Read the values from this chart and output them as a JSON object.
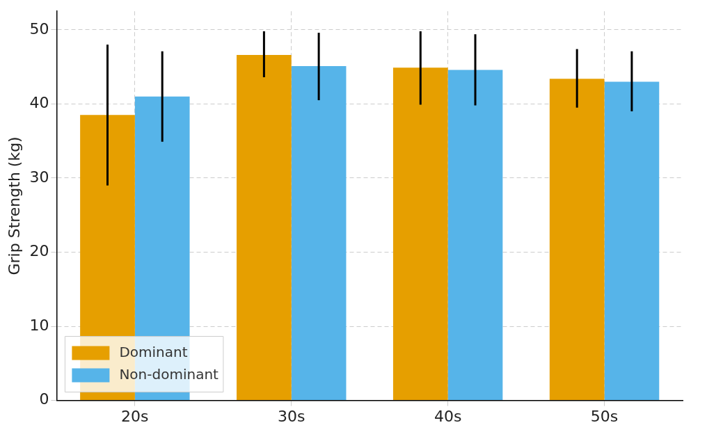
{
  "chart_data": {
    "type": "bar",
    "ylabel": "Grip Strength (kg)",
    "categories": [
      "20s",
      "30s",
      "40s",
      "50s"
    ],
    "series": [
      {
        "name": "Dominant",
        "color": "#e69f00",
        "values": [
          38.5,
          46.6,
          44.9,
          43.4
        ],
        "errors": [
          [
            29.0,
            48.0
          ],
          [
            43.6,
            49.8
          ],
          [
            39.9,
            49.8
          ],
          [
            39.5,
            47.4
          ]
        ]
      },
      {
        "name": "Non-dominant",
        "color": "#56b4e9",
        "values": [
          41.0,
          45.1,
          44.6,
          43.0
        ],
        "errors": [
          [
            34.9,
            47.1
          ],
          [
            40.5,
            49.6
          ],
          [
            39.8,
            49.4
          ],
          [
            39.0,
            47.1
          ]
        ]
      }
    ],
    "ylim": [
      0,
      52.5
    ],
    "yticks": [
      0,
      10,
      20,
      30,
      40,
      50
    ],
    "grid": true,
    "legend": "bottom left"
  }
}
